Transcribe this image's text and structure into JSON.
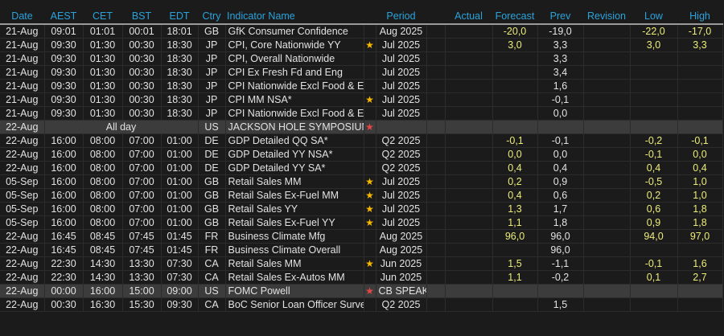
{
  "headers": {
    "date": "Date",
    "aest": "AEST",
    "cet": "CET",
    "bst": "BST",
    "edt": "EDT",
    "ctry": "Ctry",
    "indicator": "Indicator Name",
    "star": "",
    "period": "Period",
    "blank": "",
    "actual": "Actual",
    "forecast": "Forecast",
    "prev": "Prev",
    "revision": "Revision",
    "low": "Low",
    "high": "High"
  },
  "colors": {
    "header": "#2aa3dc",
    "estimate_values": "#ecec7a",
    "star_important": "#f6b800",
    "star_key_event": "#e84545",
    "highlight_row": "#3c3c3c"
  },
  "rows": [
    {
      "date": "21-Aug",
      "aest": "09:01",
      "cet": "01:01",
      "bst": "00:01",
      "edt": "18:01",
      "ctry": "GB",
      "indicator": "GfK Consumer Confidence",
      "star": "",
      "period": "Aug 2025",
      "actual": "",
      "forecast": "-20,0",
      "prev": "-19,0",
      "revision": "",
      "low": "-22,0",
      "high": "-17,0"
    },
    {
      "date": "21-Aug",
      "aest": "09:30",
      "cet": "01:30",
      "bst": "00:30",
      "edt": "18:30",
      "ctry": "JP",
      "indicator": "CPI, Core Nationwide YY",
      "star": "gold",
      "period": "Jul 2025",
      "actual": "",
      "forecast": "3,0",
      "prev": "3,3",
      "revision": "",
      "low": "3,0",
      "high": "3,3"
    },
    {
      "date": "21-Aug",
      "aest": "09:30",
      "cet": "01:30",
      "bst": "00:30",
      "edt": "18:30",
      "ctry": "JP",
      "indicator": "CPI, Overall Nationwide",
      "star": "",
      "period": "Jul 2025",
      "actual": "",
      "forecast": "",
      "prev": "3,3",
      "revision": "",
      "low": "",
      "high": ""
    },
    {
      "date": "21-Aug",
      "aest": "09:30",
      "cet": "01:30",
      "bst": "00:30",
      "edt": "18:30",
      "ctry": "JP",
      "indicator": "CPI Ex Fresh Fd and Eng",
      "star": "",
      "period": "Jul 2025",
      "actual": "",
      "forecast": "",
      "prev": "3,4",
      "revision": "",
      "low": "",
      "high": ""
    },
    {
      "date": "21-Aug",
      "aest": "09:30",
      "cet": "01:30",
      "bst": "00:30",
      "edt": "18:30",
      "ctry": "JP",
      "indicator": "CPI Nationwide  Excl Food & Ene",
      "star": "",
      "period": "Jul 2025",
      "actual": "",
      "forecast": "",
      "prev": "1,6",
      "revision": "",
      "low": "",
      "high": ""
    },
    {
      "date": "21-Aug",
      "aest": "09:30",
      "cet": "01:30",
      "bst": "00:30",
      "edt": "18:30",
      "ctry": "JP",
      "indicator": "CPI MM NSA*",
      "star": "gold",
      "period": "Jul 2025",
      "actual": "",
      "forecast": "",
      "prev": "-0,1",
      "revision": "",
      "low": "",
      "high": ""
    },
    {
      "date": "21-Aug",
      "aest": "09:30",
      "cet": "01:30",
      "bst": "00:30",
      "edt": "18:30",
      "ctry": "JP",
      "indicator": "CPI Nationwide  Excl Food & Ene",
      "star": "",
      "period": "Jul 2025",
      "actual": "",
      "forecast": "",
      "prev": "0,0",
      "revision": "",
      "low": "",
      "high": ""
    },
    {
      "date": "22-Aug",
      "allday": "All day",
      "ctry": "US",
      "indicator": "JACKSON HOLE SYMPOSIUM",
      "star": "red",
      "period": "",
      "actual": "",
      "forecast": "",
      "prev": "",
      "revision": "",
      "low": "",
      "high": "",
      "highlight": true
    },
    {
      "date": "22-Aug",
      "aest": "16:00",
      "cet": "08:00",
      "bst": "07:00",
      "edt": "01:00",
      "ctry": "DE",
      "indicator": "GDP Detailed QQ SA*",
      "star": "",
      "period": "Q2 2025",
      "actual": "",
      "forecast": "-0,1",
      "prev": "-0,1",
      "revision": "",
      "low": "-0,2",
      "high": "-0,1"
    },
    {
      "date": "22-Aug",
      "aest": "16:00",
      "cet": "08:00",
      "bst": "07:00",
      "edt": "01:00",
      "ctry": "DE",
      "indicator": "GDP Detailed YY NSA*",
      "star": "",
      "period": "Q2 2025",
      "actual": "",
      "forecast": "0,0",
      "prev": "0,0",
      "revision": "",
      "low": "-0,1",
      "high": "0,0"
    },
    {
      "date": "22-Aug",
      "aest": "16:00",
      "cet": "08:00",
      "bst": "07:00",
      "edt": "01:00",
      "ctry": "DE",
      "indicator": "GDP Detailed YY SA*",
      "star": "",
      "period": "Q2 2025",
      "actual": "",
      "forecast": "0,4",
      "prev": "0,4",
      "revision": "",
      "low": "0,4",
      "high": "0,4"
    },
    {
      "date": "05-Sep",
      "aest": "16:00",
      "cet": "08:00",
      "bst": "07:00",
      "edt": "01:00",
      "ctry": "GB",
      "indicator": "Retail Sales MM",
      "star": "gold",
      "period": "Jul 2025",
      "actual": "",
      "forecast": "0,2",
      "prev": "0,9",
      "revision": "",
      "low": "-0,5",
      "high": "1,0"
    },
    {
      "date": "05-Sep",
      "aest": "16:00",
      "cet": "08:00",
      "bst": "07:00",
      "edt": "01:00",
      "ctry": "GB",
      "indicator": "Retail Sales Ex-Fuel MM",
      "star": "gold",
      "period": "Jul 2025",
      "actual": "",
      "forecast": "0,4",
      "prev": "0,6",
      "revision": "",
      "low": "0,2",
      "high": "1,0"
    },
    {
      "date": "05-Sep",
      "aest": "16:00",
      "cet": "08:00",
      "bst": "07:00",
      "edt": "01:00",
      "ctry": "GB",
      "indicator": "Retail Sales YY",
      "star": "gold",
      "period": "Jul 2025",
      "actual": "",
      "forecast": "1,3",
      "prev": "1,7",
      "revision": "",
      "low": "0,6",
      "high": "1,8"
    },
    {
      "date": "05-Sep",
      "aest": "16:00",
      "cet": "08:00",
      "bst": "07:00",
      "edt": "01:00",
      "ctry": "GB",
      "indicator": "Retail Sales Ex-Fuel YY",
      "star": "gold",
      "period": "Jul 2025",
      "actual": "",
      "forecast": "1,1",
      "prev": "1,8",
      "revision": "",
      "low": "0,9",
      "high": "1,8"
    },
    {
      "date": "22-Aug",
      "aest": "16:45",
      "cet": "08:45",
      "bst": "07:45",
      "edt": "01:45",
      "ctry": "FR",
      "indicator": "Business Climate Mfg",
      "star": "",
      "period": "Aug 2025",
      "actual": "",
      "forecast": "96,0",
      "prev": "96,0",
      "revision": "",
      "low": "94,0",
      "high": "97,0"
    },
    {
      "date": "22-Aug",
      "aest": "16:45",
      "cet": "08:45",
      "bst": "07:45",
      "edt": "01:45",
      "ctry": "FR",
      "indicator": "Business Climate Overall",
      "star": "",
      "period": "Aug 2025",
      "actual": "",
      "forecast": "",
      "prev": "96,0",
      "revision": "",
      "low": "",
      "high": ""
    },
    {
      "date": "22-Aug",
      "aest": "22:30",
      "cet": "14:30",
      "bst": "13:30",
      "edt": "07:30",
      "ctry": "CA",
      "indicator": "Retail Sales MM",
      "star": "gold",
      "period": "Jun 2025",
      "actual": "",
      "forecast": "1,5",
      "prev": "-1,1",
      "revision": "",
      "low": "-0,1",
      "high": "1,6"
    },
    {
      "date": "22-Aug",
      "aest": "22:30",
      "cet": "14:30",
      "bst": "13:30",
      "edt": "07:30",
      "ctry": "CA",
      "indicator": "Retail Sales Ex-Autos MM",
      "star": "",
      "period": "Jun 2025",
      "actual": "",
      "forecast": "1,1",
      "prev": "-0,2",
      "revision": "",
      "low": "0,1",
      "high": "2,7"
    },
    {
      "date": "22-Aug",
      "aest": "00:00",
      "cet": "16:00",
      "bst": "15:00",
      "edt": "09:00",
      "ctry": "US",
      "indicator": "FOMC Powell",
      "star": "red",
      "period": "CB SPEAK",
      "actual": "",
      "forecast": "",
      "prev": "",
      "revision": "",
      "low": "",
      "high": "",
      "highlight": true
    },
    {
      "date": "22-Aug",
      "aest": "00:30",
      "cet": "16:30",
      "bst": "15:30",
      "edt": "09:30",
      "ctry": "CA",
      "indicator": "BoC Senior Loan Officer Survey'",
      "star": "",
      "period": "Q2 2025",
      "actual": "",
      "forecast": "",
      "prev": "1,5",
      "revision": "",
      "low": "",
      "high": ""
    }
  ]
}
